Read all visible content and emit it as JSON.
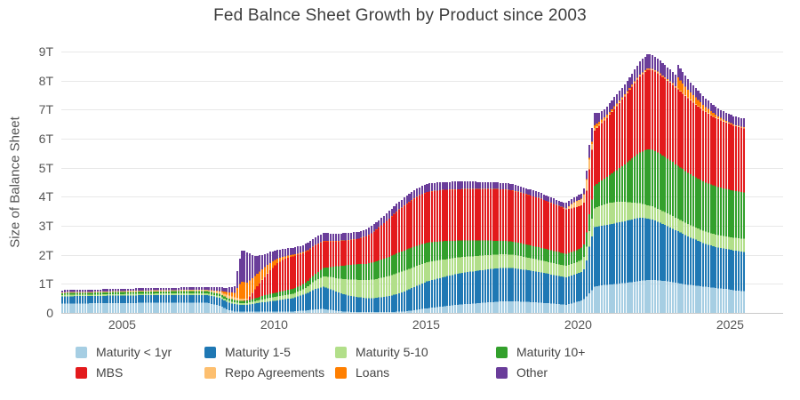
{
  "chart_data": {
    "type": "bar",
    "stacked": true,
    "title": "Fed Balnce Sheet Growth by Product since 2003",
    "ylabel": "Size of Balance Sheet",
    "unit": "trillions of USD",
    "ylim": [
      0,
      9
    ],
    "x_range": [
      2003.0,
      2025.42
    ],
    "y_tick_labels": [
      "0",
      "1T",
      "2T",
      "3T",
      "4T",
      "5T",
      "6T",
      "7T",
      "8T",
      "9T"
    ],
    "x_tick_labels": [
      "2005",
      "2010",
      "2015",
      "2020",
      "2025"
    ],
    "x_tick_years": [
      2005,
      2010,
      2015,
      2020,
      2025
    ],
    "grid": "horizontal",
    "legend_position": "bottom",
    "series": [
      {
        "name": "Maturity < 1yr",
        "color": "#a6cee3"
      },
      {
        "name": "Maturity 1-5",
        "color": "#1f78b4"
      },
      {
        "name": "Maturity 5-10",
        "color": "#b2df8a"
      },
      {
        "name": "Maturity 10+",
        "color": "#33a02c"
      },
      {
        "name": "MBS",
        "color": "#e31a1c"
      },
      {
        "name": "Repo Agreements",
        "color": "#fdbf6f"
      },
      {
        "name": "Loans",
        "color": "#ff7f00"
      },
      {
        "name": "Other",
        "color": "#6a3d9a"
      }
    ],
    "anchor_format": [
      "year",
      "Maturity < 1yr",
      "Maturity 1-5",
      "Maturity 5-10",
      "Maturity 10+",
      "MBS",
      "Repo Agreements",
      "Loans",
      "Other"
    ],
    "anchors": [
      [
        2003.0,
        0.32,
        0.25,
        0.05,
        0.06,
        0,
        0.03,
        0,
        0.07
      ],
      [
        2004.0,
        0.33,
        0.25,
        0.05,
        0.065,
        0,
        0.03,
        0,
        0.075
      ],
      [
        2005.0,
        0.34,
        0.26,
        0.05,
        0.07,
        0,
        0.035,
        0,
        0.08
      ],
      [
        2006.0,
        0.35,
        0.26,
        0.055,
        0.07,
        0,
        0.04,
        0,
        0.08
      ],
      [
        2007.0,
        0.35,
        0.27,
        0.055,
        0.075,
        0,
        0.04,
        0,
        0.085
      ],
      [
        2007.75,
        0.35,
        0.27,
        0.055,
        0.075,
        0,
        0.045,
        0,
        0.09
      ],
      [
        2008.17,
        0.25,
        0.27,
        0.055,
        0.08,
        0,
        0.08,
        0.02,
        0.12
      ],
      [
        2008.42,
        0.12,
        0.26,
        0.06,
        0.08,
        0,
        0.1,
        0.1,
        0.15
      ],
      [
        2008.67,
        0.05,
        0.25,
        0.06,
        0.08,
        0,
        0.1,
        0.15,
        0.22
      ],
      [
        2008.79,
        0.04,
        0.24,
        0.06,
        0.08,
        0,
        0.08,
        0.45,
        0.75
      ],
      [
        2008.92,
        0.04,
        0.24,
        0.06,
        0.08,
        0,
        0.07,
        0.58,
        1.1
      ],
      [
        2009.08,
        0.04,
        0.24,
        0.06,
        0.08,
        0.02,
        0.05,
        0.55,
        1.05
      ],
      [
        2009.33,
        0.04,
        0.28,
        0.08,
        0.1,
        0.3,
        0.01,
        0.45,
        0.7
      ],
      [
        2009.58,
        0.04,
        0.32,
        0.1,
        0.12,
        0.55,
        0.01,
        0.35,
        0.5
      ],
      [
        2009.83,
        0.05,
        0.35,
        0.12,
        0.14,
        0.8,
        0.01,
        0.25,
        0.38
      ],
      [
        2010.08,
        0.05,
        0.38,
        0.13,
        0.15,
        1.0,
        0,
        0.15,
        0.3
      ],
      [
        2010.33,
        0.05,
        0.42,
        0.14,
        0.16,
        1.1,
        0,
        0.08,
        0.26
      ],
      [
        2010.58,
        0.05,
        0.46,
        0.15,
        0.17,
        1.12,
        0,
        0.05,
        0.24
      ],
      [
        2010.83,
        0.07,
        0.52,
        0.17,
        0.17,
        1.09,
        0,
        0.04,
        0.24
      ],
      [
        2011.08,
        0.09,
        0.6,
        0.22,
        0.19,
        1.03,
        0,
        0.03,
        0.25
      ],
      [
        2011.33,
        0.12,
        0.7,
        0.3,
        0.23,
        0.97,
        0,
        0.02,
        0.26
      ],
      [
        2011.58,
        0.14,
        0.76,
        0.36,
        0.28,
        0.92,
        0,
        0.02,
        0.27
      ],
      [
        2011.83,
        0.1,
        0.72,
        0.42,
        0.34,
        0.89,
        0,
        0.01,
        0.26
      ],
      [
        2012.08,
        0.06,
        0.64,
        0.48,
        0.43,
        0.86,
        0,
        0.01,
        0.25
      ],
      [
        2012.42,
        0.04,
        0.56,
        0.55,
        0.5,
        0.85,
        0,
        0.01,
        0.24
      ],
      [
        2012.75,
        0.03,
        0.51,
        0.6,
        0.54,
        0.87,
        0,
        0.01,
        0.24
      ],
      [
        2013.0,
        0.03,
        0.48,
        0.62,
        0.56,
        0.94,
        0,
        0.01,
        0.24
      ],
      [
        2013.25,
        0.03,
        0.48,
        0.64,
        0.6,
        1.04,
        0,
        0.01,
        0.25
      ],
      [
        2013.5,
        0.03,
        0.51,
        0.67,
        0.63,
        1.17,
        0,
        0.01,
        0.25
      ],
      [
        2013.75,
        0.03,
        0.55,
        0.69,
        0.66,
        1.31,
        0,
        0.01,
        0.26
      ],
      [
        2014.0,
        0.04,
        0.61,
        0.71,
        0.69,
        1.43,
        0,
        0.01,
        0.27
      ],
      [
        2014.25,
        0.05,
        0.69,
        0.71,
        0.7,
        1.54,
        0,
        0.01,
        0.27
      ],
      [
        2014.5,
        0.08,
        0.77,
        0.7,
        0.7,
        1.63,
        0,
        0.01,
        0.27
      ],
      [
        2014.75,
        0.12,
        0.85,
        0.68,
        0.69,
        1.7,
        0,
        0.01,
        0.28
      ],
      [
        2015.0,
        0.16,
        0.92,
        0.66,
        0.68,
        1.74,
        0,
        0.01,
        0.28
      ],
      [
        2015.5,
        0.22,
        1.0,
        0.61,
        0.64,
        1.76,
        0,
        0.01,
        0.27
      ],
      [
        2016.0,
        0.28,
        1.07,
        0.56,
        0.58,
        1.76,
        0,
        0.01,
        0.26
      ],
      [
        2016.5,
        0.32,
        1.11,
        0.52,
        0.54,
        1.77,
        0,
        0.01,
        0.25
      ],
      [
        2017.0,
        0.36,
        1.14,
        0.49,
        0.5,
        1.77,
        0,
        0.01,
        0.23
      ],
      [
        2017.5,
        0.4,
        1.15,
        0.47,
        0.46,
        1.77,
        0,
        0.01,
        0.22
      ],
      [
        2017.83,
        0.4,
        1.14,
        0.46,
        0.45,
        1.76,
        0,
        0.01,
        0.21
      ],
      [
        2018.25,
        0.38,
        1.1,
        0.44,
        0.44,
        1.73,
        0,
        0.01,
        0.2
      ],
      [
        2018.75,
        0.35,
        1.04,
        0.42,
        0.43,
        1.68,
        0,
        0.01,
        0.19
      ],
      [
        2019.25,
        0.31,
        0.98,
        0.4,
        0.42,
        1.6,
        0,
        0.01,
        0.18
      ],
      [
        2019.58,
        0.28,
        0.95,
        0.39,
        0.41,
        1.54,
        0.02,
        0.01,
        0.18
      ],
      [
        2019.83,
        0.35,
        0.96,
        0.4,
        0.41,
        1.5,
        0.18,
        0.01,
        0.17
      ],
      [
        2020.08,
        0.43,
        0.98,
        0.41,
        0.42,
        1.46,
        0.22,
        0.01,
        0.17
      ],
      [
        2020.21,
        0.5,
        1.05,
        0.43,
        0.44,
        1.42,
        0.3,
        0.02,
        0.2
      ],
      [
        2020.29,
        0.62,
        1.45,
        0.5,
        0.54,
        1.48,
        0.42,
        0.05,
        0.4
      ],
      [
        2020.38,
        0.72,
        1.78,
        0.58,
        0.62,
        1.62,
        0.25,
        0.08,
        0.48
      ],
      [
        2020.5,
        0.9,
        2.05,
        0.65,
        0.78,
        1.9,
        0.08,
        0.1,
        0.42
      ],
      [
        2020.67,
        0.93,
        2.05,
        0.7,
        0.82,
        1.95,
        0.04,
        0.09,
        0.32
      ],
      [
        2020.83,
        0.96,
        2.05,
        0.73,
        0.88,
        2.0,
        0.03,
        0.08,
        0.28
      ],
      [
        2021.0,
        0.98,
        2.06,
        0.75,
        0.95,
        2.08,
        0.03,
        0.07,
        0.3
      ],
      [
        2021.25,
        1.0,
        2.1,
        0.72,
        1.1,
        2.2,
        0.03,
        0.06,
        0.32
      ],
      [
        2021.5,
        1.03,
        2.13,
        0.66,
        1.3,
        2.33,
        0.03,
        0.05,
        0.34
      ],
      [
        2021.75,
        1.06,
        2.16,
        0.58,
        1.52,
        2.47,
        0.03,
        0.04,
        0.38
      ],
      [
        2022.0,
        1.1,
        2.18,
        0.5,
        1.75,
        2.62,
        0.03,
        0.03,
        0.44
      ],
      [
        2022.25,
        1.13,
        2.12,
        0.46,
        1.92,
        2.74,
        0.03,
        0.02,
        0.5
      ],
      [
        2022.42,
        1.14,
        2.08,
        0.45,
        1.95,
        2.74,
        0.03,
        0.02,
        0.48
      ],
      [
        2022.58,
        1.12,
        2.02,
        0.45,
        1.94,
        2.73,
        0.03,
        0.02,
        0.45
      ],
      [
        2022.83,
        1.1,
        1.93,
        0.44,
        1.9,
        2.7,
        0.03,
        0.02,
        0.42
      ],
      [
        2023.08,
        1.06,
        1.84,
        0.44,
        1.86,
        2.66,
        0.03,
        0.02,
        0.4
      ],
      [
        2023.17,
        1.04,
        1.8,
        0.43,
        1.84,
        2.64,
        0.03,
        0.02,
        0.39
      ],
      [
        2023.25,
        1.03,
        1.78,
        0.43,
        1.83,
        2.63,
        0.03,
        0.38,
        0.42
      ],
      [
        2023.42,
        1.0,
        1.72,
        0.43,
        1.8,
        2.6,
        0.03,
        0.32,
        0.38
      ],
      [
        2023.58,
        0.97,
        1.66,
        0.43,
        1.77,
        2.56,
        0.03,
        0.27,
        0.35
      ],
      [
        2023.83,
        0.94,
        1.58,
        0.42,
        1.73,
        2.5,
        0.03,
        0.22,
        0.32
      ],
      [
        2024.08,
        0.91,
        1.5,
        0.42,
        1.7,
        2.44,
        0.03,
        0.17,
        0.3
      ],
      [
        2024.33,
        0.88,
        1.44,
        0.42,
        1.68,
        2.38,
        0.03,
        0.12,
        0.29
      ],
      [
        2024.58,
        0.85,
        1.4,
        0.43,
        1.66,
        2.33,
        0.03,
        0.07,
        0.28
      ],
      [
        2024.83,
        0.82,
        1.38,
        0.43,
        1.64,
        2.28,
        0.03,
        0.03,
        0.28
      ],
      [
        2025.08,
        0.78,
        1.37,
        0.44,
        1.62,
        2.24,
        0.03,
        0.01,
        0.29
      ],
      [
        2025.42,
        0.75,
        1.35,
        0.45,
        1.6,
        2.2,
        0.03,
        0.01,
        0.3
      ]
    ]
  }
}
